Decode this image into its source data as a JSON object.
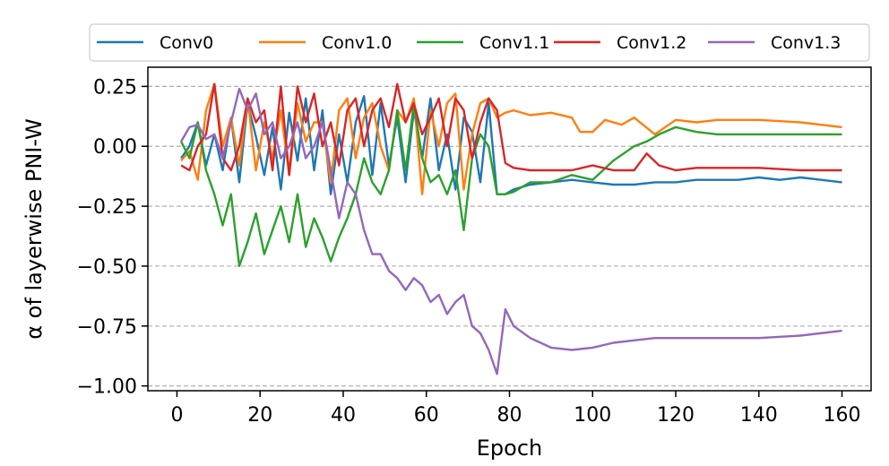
{
  "chart_data": {
    "type": "line",
    "xlabel": "Epoch",
    "ylabel": "α of layerwise PNI-W",
    "xlim": [
      -7,
      167
    ],
    "ylim": [
      -1.02,
      0.33
    ],
    "xticks": [
      0,
      20,
      40,
      60,
      80,
      100,
      120,
      140,
      160
    ],
    "xtick_labels": [
      "0",
      "20",
      "40",
      "60",
      "80",
      "100",
      "120",
      "140",
      "160"
    ],
    "yticks": [
      0.25,
      0.0,
      -0.25,
      -0.5,
      -0.75,
      -1.0
    ],
    "ytick_labels": [
      "0.25",
      "0.00",
      "−0.25",
      "−0.50",
      "−0.75",
      "−1.00"
    ],
    "grid": "horizontal dashed",
    "legend_position": "top, above plot",
    "series": [
      {
        "name": "Conv0",
        "color": "#1f77b4",
        "x": [
          1,
          3,
          5,
          7,
          9,
          11,
          13,
          15,
          17,
          19,
          21,
          23,
          25,
          27,
          29,
          31,
          33,
          35,
          37,
          39,
          41,
          43,
          45,
          47,
          49,
          51,
          53,
          55,
          57,
          59,
          61,
          63,
          65,
          67,
          69,
          71,
          73,
          75,
          77,
          79,
          81,
          85,
          90,
          95,
          100,
          105,
          110,
          115,
          120,
          125,
          130,
          135,
          140,
          145,
          150,
          155,
          160
        ],
        "y": [
          -0.05,
          0.0,
          0.1,
          -0.08,
          0.05,
          -0.1,
          0.12,
          -0.15,
          0.18,
          0.04,
          -0.12,
          0.08,
          -0.18,
          0.14,
          -0.06,
          0.2,
          -0.1,
          0.15,
          -0.2,
          0.05,
          -0.15,
          0.1,
          0.21,
          -0.12,
          0.18,
          -0.08,
          0.12,
          -0.15,
          0.15,
          -0.05,
          0.2,
          -0.1,
          0.05,
          -0.18,
          0.12,
          0.06,
          -0.15,
          0.18,
          -0.2,
          -0.2,
          -0.18,
          -0.16,
          -0.15,
          -0.14,
          -0.15,
          -0.16,
          -0.16,
          -0.15,
          -0.15,
          -0.14,
          -0.14,
          -0.14,
          -0.13,
          -0.14,
          -0.13,
          -0.14,
          -0.15
        ]
      },
      {
        "name": "Conv1.0",
        "color": "#ff7f0e",
        "x": [
          1,
          3,
          5,
          7,
          9,
          11,
          13,
          15,
          17,
          19,
          21,
          23,
          25,
          27,
          29,
          31,
          33,
          35,
          37,
          39,
          41,
          43,
          45,
          47,
          49,
          51,
          53,
          55,
          57,
          59,
          61,
          63,
          65,
          67,
          69,
          71,
          73,
          75,
          77,
          79,
          81,
          85,
          90,
          95,
          97,
          100,
          103,
          107,
          110,
          115,
          120,
          125,
          130,
          140,
          150,
          160
        ],
        "y": [
          -0.06,
          -0.02,
          -0.14,
          0.15,
          0.26,
          0.0,
          0.12,
          -0.08,
          0.2,
          -0.1,
          0.1,
          -0.05,
          0.15,
          -0.12,
          0.18,
          0.02,
          0.1,
          0.1,
          -0.15,
          0.15,
          0.2,
          -0.05,
          0.12,
          0.18,
          0.0,
          -0.1,
          0.15,
          0.1,
          0.2,
          -0.2,
          0.15,
          0.0,
          0.18,
          0.22,
          -0.18,
          0.05,
          0.18,
          0.2,
          0.12,
          0.14,
          0.15,
          0.13,
          0.14,
          0.12,
          0.06,
          0.06,
          0.11,
          0.09,
          0.12,
          0.05,
          0.11,
          0.1,
          0.11,
          0.11,
          0.1,
          0.08
        ]
      },
      {
        "name": "Conv1.1",
        "color": "#2ca02c",
        "x": [
          1,
          3,
          5,
          7,
          9,
          11,
          13,
          15,
          17,
          19,
          21,
          23,
          25,
          27,
          29,
          31,
          33,
          35,
          37,
          39,
          41,
          43,
          45,
          47,
          49,
          51,
          53,
          55,
          57,
          59,
          61,
          63,
          65,
          67,
          69,
          71,
          73,
          75,
          77,
          79,
          81,
          85,
          90,
          95,
          100,
          105,
          110,
          113,
          116,
          120,
          125,
          130,
          140,
          150,
          160
        ],
        "y": [
          0.02,
          -0.05,
          0.1,
          -0.1,
          -0.2,
          -0.33,
          -0.2,
          -0.5,
          -0.4,
          -0.28,
          -0.45,
          -0.35,
          -0.25,
          -0.4,
          -0.2,
          -0.42,
          -0.3,
          -0.38,
          -0.48,
          -0.38,
          -0.3,
          -0.2,
          -0.05,
          -0.15,
          -0.2,
          -0.1,
          0.15,
          -0.1,
          0.18,
          -0.05,
          -0.15,
          -0.12,
          -0.2,
          -0.1,
          -0.35,
          -0.05,
          0.05,
          0.0,
          -0.2,
          -0.2,
          -0.19,
          -0.15,
          -0.15,
          -0.12,
          -0.14,
          -0.06,
          0.0,
          0.02,
          0.05,
          0.08,
          0.06,
          0.05,
          0.05,
          0.05,
          0.05
        ]
      },
      {
        "name": "Conv1.2",
        "color": "#d62728",
        "x": [
          1,
          3,
          5,
          7,
          9,
          11,
          13,
          15,
          17,
          19,
          21,
          23,
          25,
          27,
          29,
          31,
          33,
          35,
          37,
          39,
          41,
          43,
          45,
          47,
          49,
          51,
          53,
          55,
          57,
          59,
          61,
          63,
          65,
          67,
          69,
          71,
          73,
          75,
          77,
          79,
          81,
          85,
          90,
          95,
          100,
          105,
          110,
          113,
          116,
          120,
          125,
          130,
          140,
          150,
          160
        ],
        "y": [
          -0.08,
          -0.1,
          0.0,
          0.05,
          0.26,
          -0.05,
          -0.1,
          0.0,
          0.2,
          0.1,
          0.15,
          -0.1,
          0.25,
          -0.12,
          0.25,
          0.1,
          0.22,
          0.0,
          0.1,
          -0.08,
          0.15,
          0.2,
          0.0,
          0.15,
          0.2,
          0.08,
          0.26,
          0.1,
          0.18,
          0.05,
          0.12,
          0.2,
          0.0,
          0.2,
          0.15,
          -0.05,
          0.1,
          0.2,
          0.15,
          -0.07,
          -0.09,
          -0.1,
          -0.1,
          -0.1,
          -0.08,
          -0.1,
          -0.1,
          -0.03,
          -0.08,
          -0.1,
          -0.09,
          -0.09,
          -0.09,
          -0.1,
          -0.1
        ]
      },
      {
        "name": "Conv1.3",
        "color": "#9467bd",
        "x": [
          1,
          3,
          5,
          7,
          9,
          11,
          13,
          15,
          17,
          19,
          21,
          23,
          25,
          27,
          29,
          31,
          33,
          35,
          37,
          39,
          41,
          43,
          45,
          47,
          49,
          51,
          53,
          55,
          57,
          59,
          61,
          63,
          65,
          67,
          69,
          71,
          73,
          75,
          77,
          79,
          81,
          85,
          90,
          95,
          100,
          105,
          110,
          115,
          120,
          130,
          140,
          150,
          160
        ],
        "y": [
          0.02,
          0.08,
          0.09,
          0.03,
          0.05,
          -0.05,
          0.1,
          0.24,
          0.15,
          0.22,
          0.05,
          0.1,
          -0.05,
          0.0,
          0.1,
          -0.05,
          0.0,
          0.1,
          -0.1,
          -0.3,
          -0.15,
          -0.2,
          -0.35,
          -0.45,
          -0.45,
          -0.52,
          -0.55,
          -0.6,
          -0.55,
          -0.58,
          -0.65,
          -0.62,
          -0.7,
          -0.65,
          -0.62,
          -0.75,
          -0.78,
          -0.85,
          -0.95,
          -0.68,
          -0.75,
          -0.8,
          -0.84,
          -0.85,
          -0.84,
          -0.82,
          -0.81,
          -0.8,
          -0.8,
          -0.8,
          -0.8,
          -0.79,
          -0.77
        ]
      }
    ]
  }
}
